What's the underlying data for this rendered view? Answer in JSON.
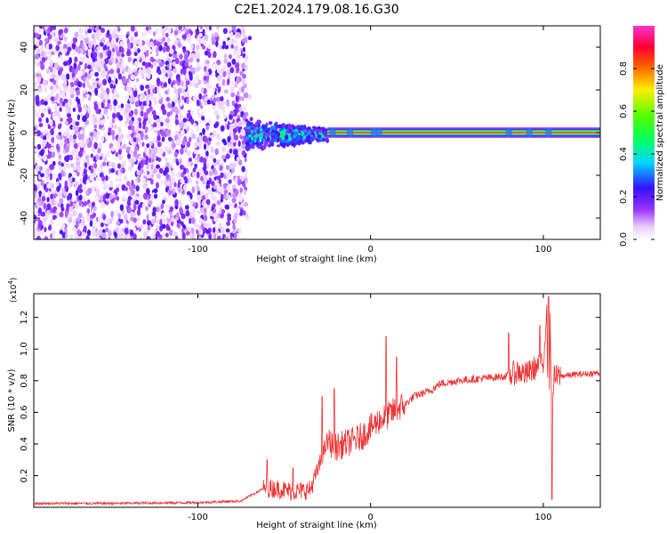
{
  "title": "C2E1.2024.179.08.16.G30",
  "chart_data": [
    {
      "type": "heatmap",
      "xlabel": "Height of straight line (km)",
      "ylabel": "Frequency (Hz)",
      "xlim": [
        -195,
        133
      ],
      "ylim": [
        -50,
        50
      ],
      "xticks": [
        -100,
        0,
        100
      ],
      "xtick_labels": [
        "-100",
        "0",
        "100"
      ],
      "yticks": [
        -40,
        -20,
        0,
        20,
        40
      ],
      "ytick_labels": [
        "-40",
        "-20",
        "0",
        "20",
        "40"
      ],
      "colorbar": {
        "label": "Normalized spectral amplitude",
        "range": [
          0,
          1
        ],
        "ticks": [
          0.0,
          0.2,
          0.4,
          0.6,
          0.8
        ],
        "tick_labels": [
          "0.0",
          "0.2",
          "0.4",
          "0.6",
          "0.8"
        ],
        "colormap": "rainbow (white-violet-blue-cyan-green-yellow-red-magenta)"
      },
      "regions": [
        {
          "description": "scattered noise",
          "x_range": [
            -195,
            -72
          ],
          "freq_range": [
            -50,
            50
          ],
          "amplitude": 0.05
        },
        {
          "description": "broadened return",
          "x_range": [
            -72,
            -25
          ],
          "freq_range": [
            -8,
            8
          ],
          "amplitude": 0.35
        },
        {
          "description": "narrow band",
          "x_range": [
            -25,
            133
          ],
          "freq_center": 0,
          "freq_width": 2,
          "amplitude": 0.85
        }
      ]
    },
    {
      "type": "line",
      "xlabel": "Height of straight line (km)",
      "ylabel": "SNR (10 * v/v)",
      "y_multiplier": "(x10",
      "y_multiplier_exp": "4",
      "y_multiplier_close": ")",
      "xlim": [
        -195,
        133
      ],
      "ylim": [
        0,
        1.35
      ],
      "xticks": [
        -100,
        0,
        100
      ],
      "xtick_labels": [
        "-100",
        "0",
        "100"
      ],
      "yticks": [
        0.2,
        0.4,
        0.6,
        0.8,
        1.0,
        1.2
      ],
      "ytick_labels": [
        "0.2",
        "0.4",
        "0.6",
        "0.8",
        "1.0",
        "1.2"
      ],
      "series": [
        {
          "color": "#ee3333",
          "x": [
            -195,
            -150,
            -100,
            -75,
            -62,
            -55,
            -45,
            -35,
            -30,
            -25,
            -20,
            -15,
            -10,
            -5,
            0,
            5,
            10,
            15,
            20,
            25,
            30,
            35,
            40,
            50,
            60,
            70,
            80,
            85,
            90,
            95,
            100,
            102,
            103,
            104,
            105,
            106,
            110,
            120,
            133
          ],
          "y": [
            0.025,
            0.025,
            0.03,
            0.04,
            0.12,
            0.12,
            0.1,
            0.11,
            0.25,
            0.42,
            0.38,
            0.4,
            0.42,
            0.45,
            0.5,
            0.55,
            0.58,
            0.62,
            0.65,
            0.7,
            0.72,
            0.74,
            0.78,
            0.8,
            0.81,
            0.82,
            0.83,
            0.86,
            0.84,
            0.88,
            0.9,
            1.28,
            0.3,
            1.2,
            0.45,
            0.82,
            0.83,
            0.84,
            0.85
          ]
        }
      ],
      "spikes": [
        {
          "x": -60,
          "y": 0.3
        },
        {
          "x": -45,
          "y": 0.25
        },
        {
          "x": -28,
          "y": 0.7
        },
        {
          "x": -21,
          "y": 0.75
        },
        {
          "x": 9,
          "y": 1.08
        },
        {
          "x": 15,
          "y": 0.95
        },
        {
          "x": 80,
          "y": 1.1
        },
        {
          "x": 98,
          "y": 1.15
        },
        {
          "x": 103,
          "y": 1.33
        },
        {
          "x": 105,
          "y": 0.05
        }
      ]
    }
  ]
}
